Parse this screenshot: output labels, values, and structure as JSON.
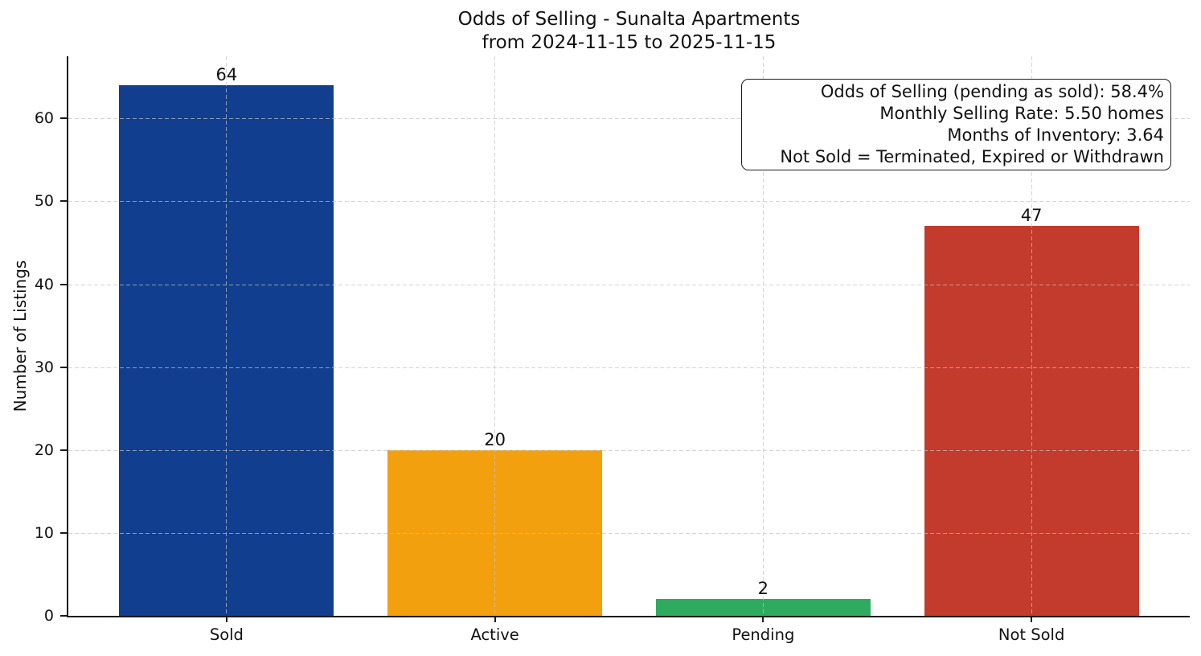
{
  "chart_data": {
    "type": "bar",
    "title_line1": "Odds of Selling - Sunalta Apartments",
    "title_line2": "from 2024-11-15 to 2025-11-15",
    "categories": [
      "Sold",
      "Active",
      "Pending",
      "Not Sold"
    ],
    "values": [
      64,
      20,
      2,
      47
    ],
    "bar_colors": [
      "#113e8e",
      "#f3a00e",
      "#2eab5e",
      "#c23b2c"
    ],
    "xlabel": "",
    "ylabel": "Number of Listings",
    "yticks": [
      0,
      10,
      20,
      30,
      40,
      50,
      60
    ],
    "ylim": [
      0,
      67.5
    ],
    "grid": {
      "style": "dashed",
      "axes": "both",
      "color": "#dcdcdc",
      "drawn_above_bars": true
    },
    "legend": "none",
    "annotation_box": {
      "position": "top-right",
      "text_align": "right",
      "lines": [
        "Odds of Selling (pending as sold): 58.4%",
        "Monthly Selling Rate: 5.50 homes",
        "Months of Inventory: 3.64",
        "Not Sold = Terminated, Expired or Withdrawn"
      ]
    },
    "stats": {
      "odds_of_selling_pending_as_sold_pct": 58.4,
      "monthly_selling_rate_homes": 5.5,
      "months_of_inventory": 3.64,
      "not_sold_definition": "Terminated, Expired or Withdrawn"
    }
  },
  "colors": {
    "axis": "#1c1c1c",
    "text": "#111111",
    "background": "#ffffff",
    "gridline": "#dcdcdc"
  }
}
